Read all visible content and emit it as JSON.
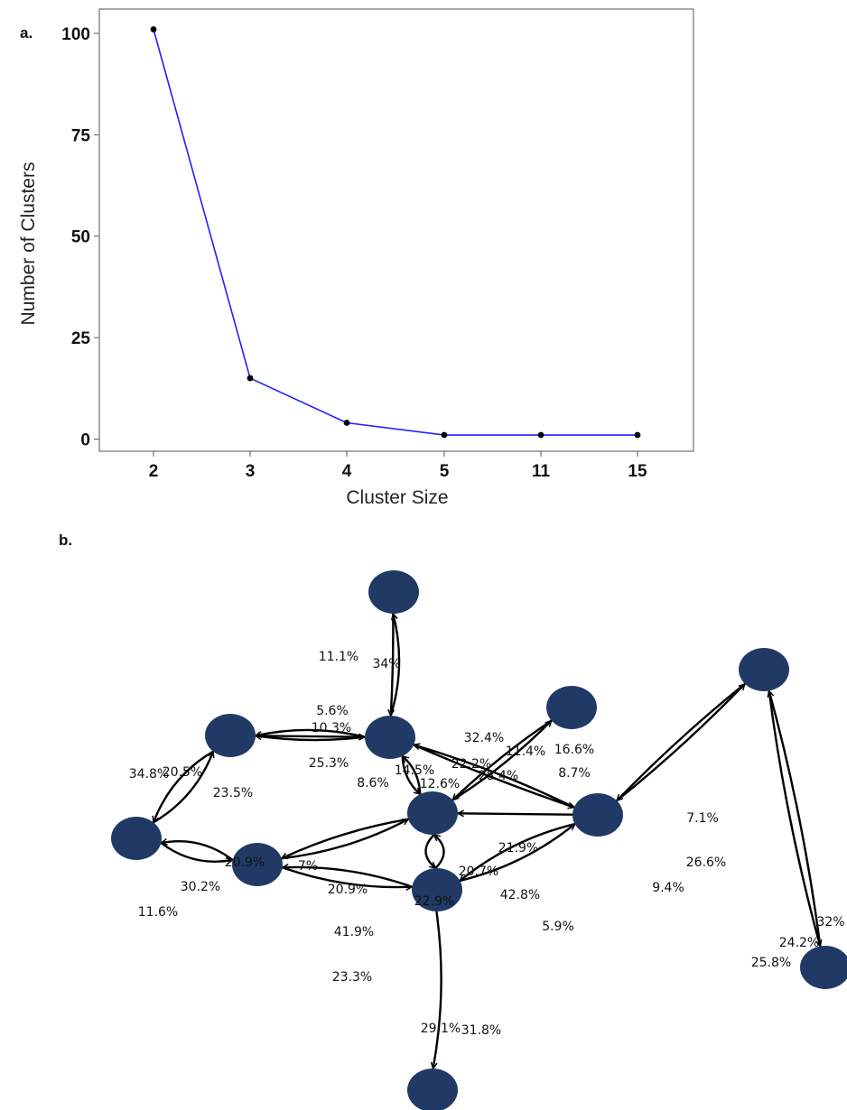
{
  "panels": {
    "a": {
      "label": "a."
    },
    "b": {
      "label": "b."
    }
  },
  "chart_data": {
    "type": "line",
    "title": "",
    "xlabel": "Cluster Size",
    "ylabel": "Number of Clusters",
    "categories": [
      "2",
      "3",
      "4",
      "5",
      "11",
      "15"
    ],
    "series": [
      {
        "values": [
          101,
          15,
          4,
          1,
          1,
          1
        ],
        "color": "#2020ff",
        "marker_color": "#000000"
      }
    ],
    "yticks": [
      0,
      25,
      50,
      75,
      100
    ],
    "ylim": [
      -3,
      106
    ],
    "grid": false,
    "legend": "none"
  },
  "network": {
    "node_color": "#213a65",
    "edge_color": "#000000",
    "edge_labels": [
      "11.1%",
      "34%",
      "5.6%",
      "10.3%",
      "25.3%",
      "32.4%",
      "11.4%",
      "16.6%",
      "22.2%",
      "28.4%",
      "8.7%",
      "34.8%",
      "20.5%",
      "23.5%",
      "14.5%",
      "12.6%",
      "8.6%",
      "7.1%",
      "26.6%",
      "9.4%",
      "21.9%",
      "20.9%",
      "7%",
      "30.2%",
      "20.9%",
      "11.6%",
      "20.7%",
      "42.8%",
      "22.9%",
      "5.9%",
      "41.9%",
      "23.3%",
      "32%",
      "24.2%",
      "25.8%",
      "29.1%",
      "31.8%"
    ]
  }
}
